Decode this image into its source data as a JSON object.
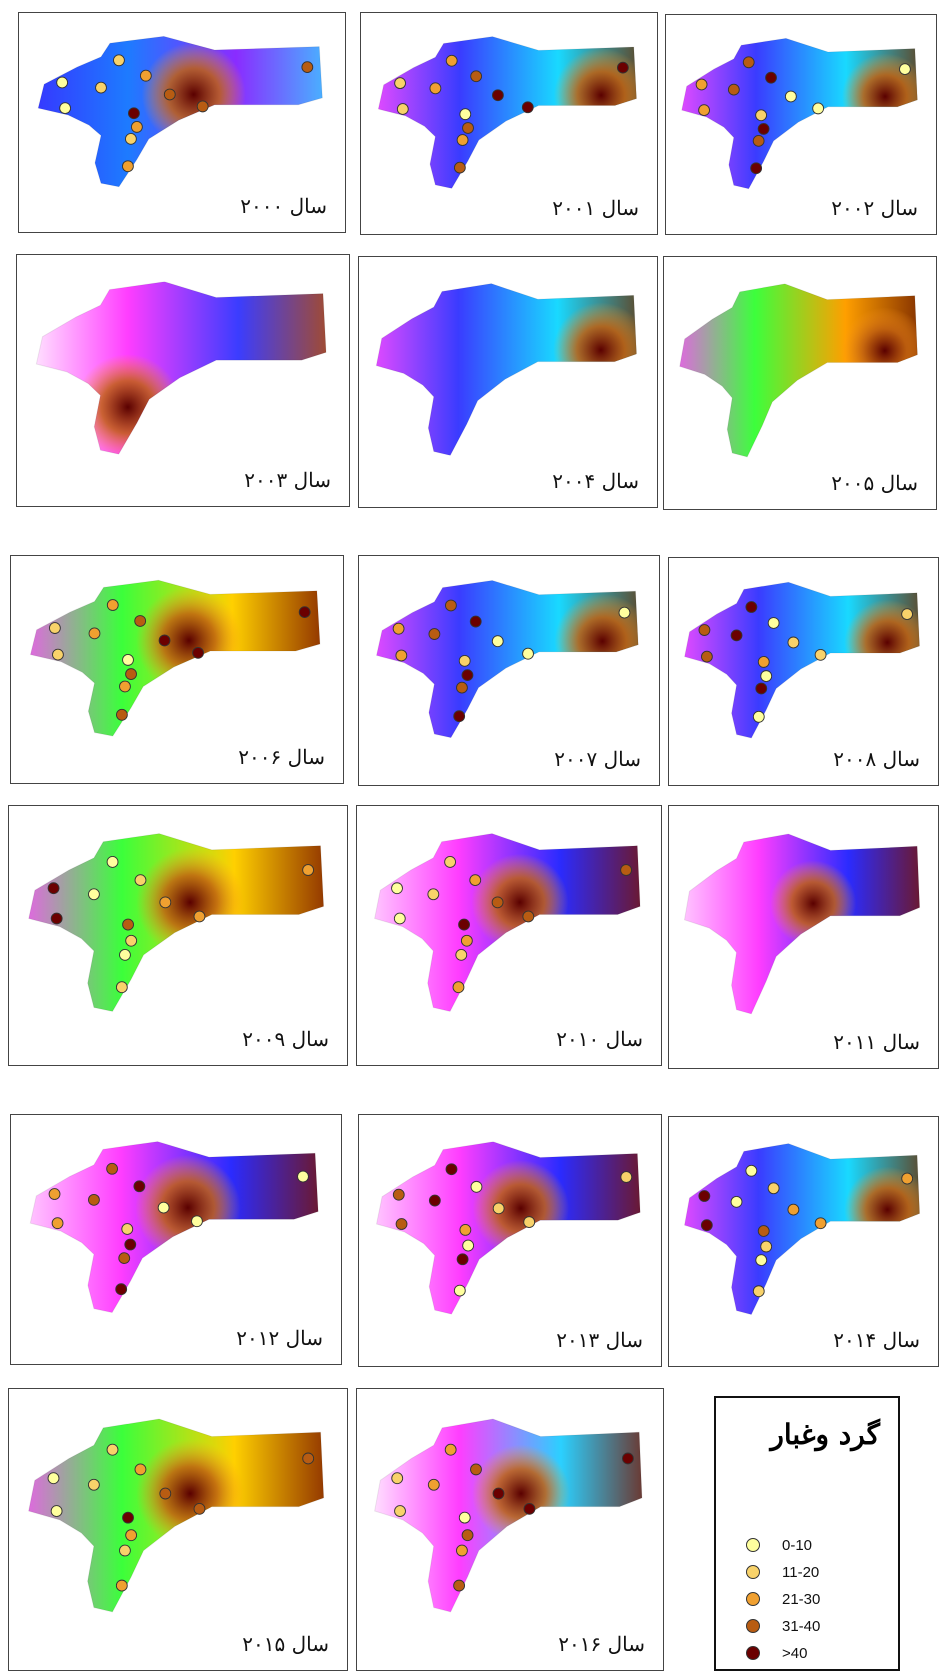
{
  "figure": {
    "panels": [
      {
        "label": "سال ۲۰۰۰",
        "scheme": "blue",
        "stations": true
      },
      {
        "label": "سال ۲۰۰۱",
        "scheme": "spectrum",
        "stations": true
      },
      {
        "label": "سال ۲۰۰۲",
        "scheme": "spectrum",
        "stations": true
      },
      {
        "label": "سال ۲۰۰۳",
        "scheme": "pinkblue",
        "stations": false
      },
      {
        "label": "سال ۲۰۰۴",
        "scheme": "spectrum",
        "stations": false
      },
      {
        "label": "سال ۲۰۰۵",
        "scheme": "eastbrown",
        "stations": false
      },
      {
        "label": "سال ۲۰۰۶",
        "scheme": "hotspot",
        "stations": true
      },
      {
        "label": "سال ۲۰۰۷",
        "scheme": "spectrum",
        "stations": true
      },
      {
        "label": "سال ۲۰۰۸",
        "scheme": "spectrum",
        "stations": true
      },
      {
        "label": "سال ۲۰۰۹",
        "scheme": "hotspot",
        "stations": true
      },
      {
        "label": "سال ۲۰۱۰",
        "scheme": "pinkspot",
        "stations": true
      },
      {
        "label": "سال ۲۰۱۱",
        "scheme": "pinkspot",
        "stations": false
      },
      {
        "label": "سال ۲۰۱۲",
        "scheme": "pinkspot",
        "stations": true
      },
      {
        "label": "سال ۲۰۱۳",
        "scheme": "pinkspot",
        "stations": true
      },
      {
        "label": "سال ۲۰۱۴",
        "scheme": "spectrum",
        "stations": true
      },
      {
        "label": "سال ۲۰۱۵",
        "scheme": "hotspot",
        "stations": true
      },
      {
        "label": "سال ۲۰۱۶",
        "scheme": "cyanspot",
        "stations": true
      }
    ],
    "legend": {
      "title": "گرد وغبار",
      "classes": [
        {
          "label": "0-10",
          "color": "#ffff9e"
        },
        {
          "label": "11-20",
          "color": "#f8d26a"
        },
        {
          "label": "21-30",
          "color": "#f0a030"
        },
        {
          "label": "31-40",
          "color": "#b85c12"
        },
        {
          "label": ">40",
          "color": "#6b0000"
        }
      ]
    }
  }
}
